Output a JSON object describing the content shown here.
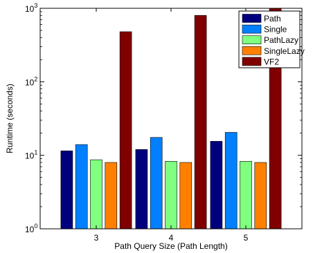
{
  "chart_data": {
    "type": "bar",
    "xlabel": "Path Query Size (Path Length)",
    "ylabel": "Runtime (seconds)",
    "categories": [
      "3",
      "4",
      "5"
    ],
    "yscale": "log",
    "ylim": [
      1,
      1000
    ],
    "grid": false,
    "legend_position": "top-right",
    "y_ticks": [
      {
        "base": "10",
        "exp": "0"
      },
      {
        "base": "10",
        "exp": "1"
      },
      {
        "base": "10",
        "exp": "2"
      },
      {
        "base": "10",
        "exp": "3"
      }
    ],
    "series": [
      {
        "name": "Path",
        "color": "#00007f",
        "values": [
          11.5,
          12.0,
          15.5
        ]
      },
      {
        "name": "Single",
        "color": "#0080ff",
        "values": [
          14.0,
          17.5,
          20.5
        ]
      },
      {
        "name": "PathLazy",
        "color": "#80ff80",
        "values": [
          8.7,
          8.3,
          8.3
        ]
      },
      {
        "name": "SingleLazy",
        "color": "#ff8000",
        "values": [
          8.0,
          8.0,
          8.0
        ]
      },
      {
        "name": "VF2",
        "color": "#800000",
        "values": [
          480,
          800,
          1000
        ]
      }
    ]
  }
}
